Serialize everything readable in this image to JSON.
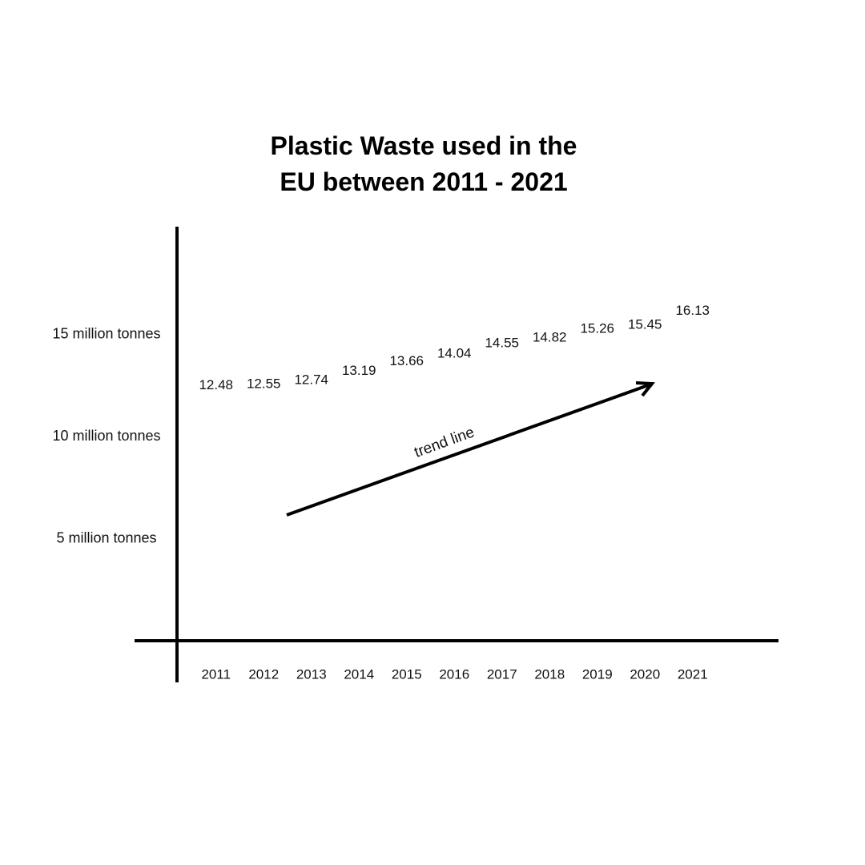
{
  "chart_data": {
    "type": "text",
    "title": "Plastic Waste used in the EU between 2011 - 2021",
    "categories": [
      "2011",
      "2012",
      "2013",
      "2014",
      "2015",
      "2016",
      "2017",
      "2018",
      "2019",
      "2020",
      "2021"
    ],
    "values": [
      12.48,
      12.55,
      12.74,
      13.19,
      13.66,
      14.04,
      14.55,
      14.82,
      15.26,
      15.45,
      16.13
    ],
    "color": "#111111",
    "ylim": [
      0,
      20
    ],
    "yticks": [
      {
        "value": 5,
        "label": "5 million tonnes"
      },
      {
        "value": 10,
        "label": "10 million tonnes"
      },
      {
        "value": 15,
        "label": "15 million tonnes"
      }
    ],
    "grid": false,
    "annotation": "trend line"
  }
}
